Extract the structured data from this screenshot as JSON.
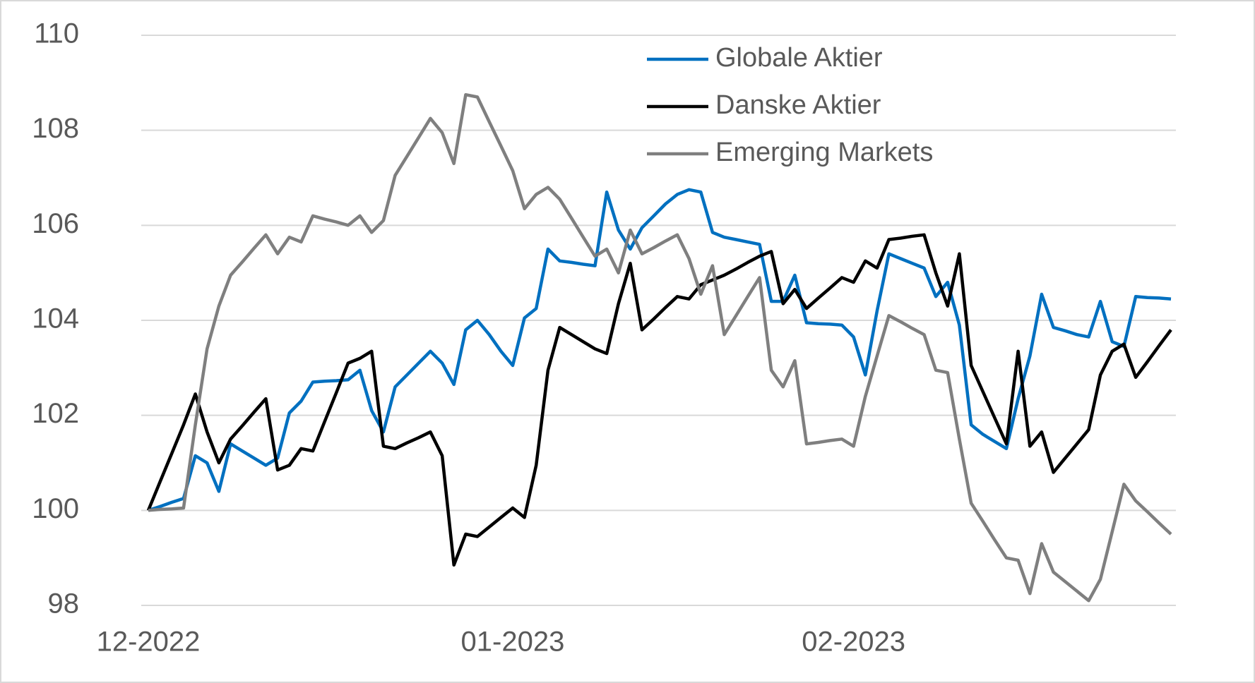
{
  "chart_data": {
    "type": "line",
    "categories": [
      "12-2022",
      null,
      null,
      null,
      null,
      null,
      null,
      null,
      null,
      null,
      null,
      null,
      null,
      null,
      null,
      null,
      null,
      null,
      null,
      null,
      null,
      null,
      null,
      null,
      null,
      null,
      null,
      null,
      null,
      null,
      null,
      "01-2023",
      null,
      null,
      null,
      null,
      null,
      null,
      null,
      null,
      null,
      null,
      null,
      null,
      null,
      null,
      null,
      null,
      null,
      null,
      null,
      null,
      null,
      null,
      null,
      null,
      null,
      null,
      null,
      null,
      "02-2023",
      null,
      null,
      null,
      null,
      null,
      null,
      null,
      null,
      null,
      null,
      null,
      null,
      null,
      null,
      null,
      null,
      null,
      null,
      null,
      null,
      null,
      null,
      null,
      null,
      null,
      null,
      null
    ],
    "series": [
      {
        "name": "Globale Aktier",
        "color": "#0070c0",
        "values": [
          100,
          100.08,
          100.17,
          100.25,
          101.15,
          101.0,
          100.4,
          101.4,
          101.25,
          101.1,
          100.95,
          101.1,
          102.05,
          102.3,
          102.7,
          102.72,
          102.73,
          102.75,
          102.95,
          102.1,
          101.65,
          102.6,
          102.85,
          103.1,
          103.35,
          103.1,
          102.65,
          103.8,
          104.0,
          103.7,
          103.35,
          103.05,
          104.05,
          104.25,
          105.5,
          105.25,
          105.22,
          105.18,
          105.15,
          106.7,
          105.9,
          105.5,
          105.95,
          106.2,
          106.45,
          106.65,
          106.75,
          106.7,
          105.85,
          105.75,
          105.7,
          105.65,
          105.6,
          104.4,
          104.4,
          104.95,
          103.95,
          103.93,
          103.92,
          103.9,
          103.65,
          102.85,
          104.2,
          105.4,
          105.3,
          105.2,
          105.1,
          104.5,
          104.8,
          103.9,
          101.8,
          101.6,
          101.45,
          101.3,
          102.35,
          103.25,
          104.55,
          103.85,
          103.78,
          103.7,
          103.65,
          104.4,
          103.55,
          103.45,
          104.5,
          104.48,
          104.47,
          104.45
        ]
      },
      {
        "name": "Danske Aktier",
        "color": "#000000",
        "values": [
          100,
          100.6,
          101.2,
          101.8,
          102.45,
          101.65,
          101.0,
          101.5,
          101.78,
          102.07,
          102.35,
          100.85,
          100.95,
          101.3,
          101.25,
          101.87,
          102.48,
          103.1,
          103.2,
          103.35,
          101.35,
          101.3,
          101.42,
          101.53,
          101.65,
          101.15,
          98.85,
          99.5,
          99.45,
          99.65,
          99.85,
          100.05,
          99.85,
          100.95,
          102.95,
          103.85,
          103.7,
          103.55,
          103.4,
          103.3,
          104.35,
          105.2,
          103.8,
          104.03,
          104.27,
          104.5,
          104.45,
          104.75,
          104.85,
          104.95,
          105.08,
          105.22,
          105.35,
          105.45,
          104.35,
          104.65,
          104.25,
          104.47,
          104.68,
          104.9,
          104.8,
          105.25,
          105.1,
          105.7,
          105.73,
          105.77,
          105.8,
          105.0,
          104.3,
          105.4,
          103.05,
          102.5,
          101.95,
          101.4,
          103.35,
          101.35,
          101.65,
          100.8,
          101.1,
          101.4,
          101.7,
          102.85,
          103.35,
          103.5,
          102.8,
          103.13,
          103.47,
          103.8
        ]
      },
      {
        "name": "Emerging Markets",
        "color": "#7f7f7f",
        "values": [
          100,
          100.02,
          100.03,
          100.05,
          101.8,
          103.4,
          104.3,
          104.95,
          105.23,
          105.52,
          105.8,
          105.4,
          105.75,
          105.65,
          106.2,
          106.13,
          106.07,
          106.0,
          106.2,
          105.85,
          106.1,
          107.05,
          107.45,
          107.85,
          108.25,
          107.95,
          107.3,
          108.75,
          108.7,
          108.18,
          107.67,
          107.15,
          106.35,
          106.65,
          106.8,
          106.55,
          106.15,
          105.75,
          105.35,
          105.5,
          105.0,
          105.9,
          105.4,
          105.53,
          105.67,
          105.8,
          105.3,
          104.55,
          105.15,
          103.7,
          104.1,
          104.5,
          104.9,
          102.95,
          102.6,
          103.15,
          101.4,
          101.43,
          101.47,
          101.5,
          101.35,
          102.4,
          103.25,
          104.1,
          103.97,
          103.83,
          103.7,
          102.95,
          102.9,
          101.5,
          100.15,
          99.77,
          99.38,
          99.0,
          98.95,
          98.25,
          99.3,
          98.7,
          98.5,
          98.3,
          98.1,
          98.55,
          99.55,
          100.55,
          100.2,
          99.97,
          99.73,
          99.5
        ]
      }
    ],
    "ylim": [
      98,
      110
    ],
    "yticks": [
      98,
      100,
      102,
      104,
      106,
      108,
      110
    ],
    "grid": true,
    "legend": "top-right"
  }
}
